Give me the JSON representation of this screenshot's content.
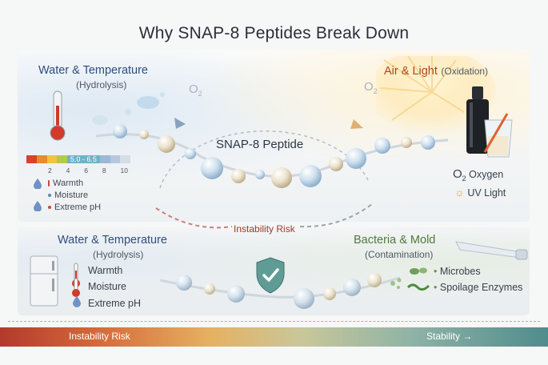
{
  "title": "Why SNAP-8 Peptides Break Down",
  "top_left": {
    "heading": "Water & Temperature",
    "subheading": "(Hydrolysis)",
    "scale_highlight": "5.0 - 6.5",
    "scale_ticks": [
      "2",
      "4",
      "6",
      "8",
      "10"
    ],
    "items": [
      "Warmth",
      "Moisture",
      "Extreme pH"
    ]
  },
  "top_right": {
    "heading": "Air & Light",
    "heading_suffix": "(Oxidation)",
    "o2_symbol": "O",
    "o2_sub": "2",
    "items": [
      {
        "icon": "oxygen-icon",
        "label": "Oxygen"
      },
      {
        "icon": "sun-icon",
        "label": "UV Light"
      }
    ]
  },
  "center": {
    "peptide_label": "SNAP-8 Peptide",
    "arc_label": "Instability Risk"
  },
  "bottom_left": {
    "heading": "Water & Temperature",
    "subheading": "(Hydrolysis)",
    "items": [
      {
        "icon": "thermometer-icon",
        "label": "Warmth"
      },
      {
        "icon": "thermometer-icon",
        "label": "Moisture"
      },
      {
        "icon": "water-drop-icon",
        "label": "Extreme pH"
      }
    ]
  },
  "bottom_right": {
    "heading": "Bacteria & Mold",
    "subheading": "(Contamination)",
    "items": [
      {
        "icon": "microbe-icon",
        "label": "Microbes"
      },
      {
        "icon": "enzyme-icon",
        "label": "Spoilage Enzymes"
      }
    ]
  },
  "footer": {
    "left_label": "Instability Risk",
    "right_label": "Stability →"
  },
  "colors": {
    "heading_blue": "#2e4d7d",
    "heading_orange": "#b0461c",
    "heading_green": "#4f7a3c",
    "footer_red": "#c0392b",
    "footer_teal": "#4f8c8c"
  }
}
